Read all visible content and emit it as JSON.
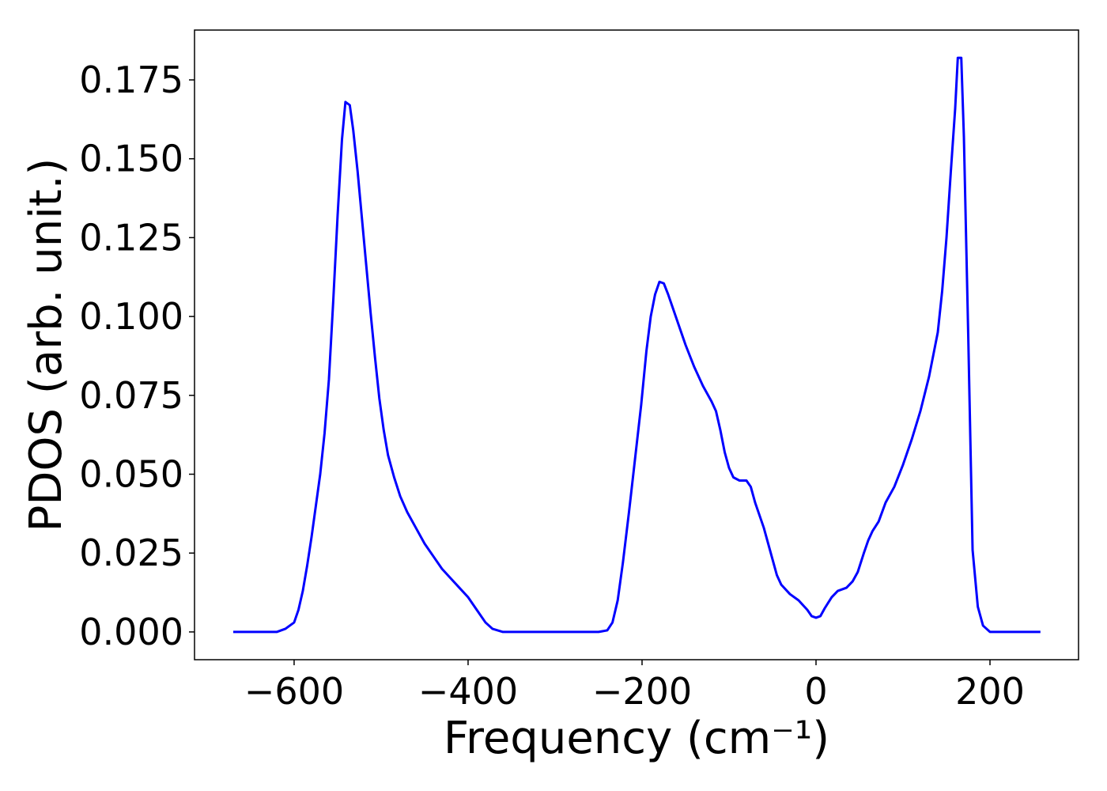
{
  "chart_data": {
    "type": "line",
    "xlabel": "Frequency (cm⁻¹)",
    "ylabel": "PDOS (arb. unit.)",
    "xlim": [
      -714.5,
      301.8
    ],
    "ylim": [
      -0.0088,
      0.1908
    ],
    "xticks": [
      {
        "value": -600,
        "label": "−600"
      },
      {
        "value": -400,
        "label": "−400"
      },
      {
        "value": -200,
        "label": "−200"
      },
      0,
      200
    ],
    "yticks": [
      {
        "value": 0,
        "label": "0.000"
      },
      {
        "value": 0.025,
        "label": "0.025"
      },
      {
        "value": 0.05,
        "label": "0.050"
      },
      {
        "value": 0.075,
        "label": "0.075"
      },
      {
        "value": 0.1,
        "label": "0.100"
      },
      {
        "value": 0.125,
        "label": "0.125"
      },
      {
        "value": 0.15,
        "label": "0.150"
      },
      {
        "value": 0.175,
        "label": "0.175"
      }
    ],
    "x": [
      -670,
      -620,
      -610,
      -600,
      -595,
      -590,
      -585,
      -580,
      -575,
      -570,
      -565,
      -560,
      -555,
      -550,
      -545,
      -541,
      -536,
      -532,
      -527,
      -522,
      -517,
      -512,
      -507,
      -502,
      -497,
      -492,
      -485,
      -478,
      -470,
      -460,
      -450,
      -440,
      -430,
      -420,
      -410,
      -400,
      -390,
      -380,
      -372,
      -360,
      -250,
      -240,
      -234,
      -228,
      -222,
      -215,
      -208,
      -201,
      -195,
      -190,
      -185,
      -180,
      -175,
      -170,
      -160,
      -150,
      -140,
      -130,
      -120,
      -115,
      -110,
      -105,
      -100,
      -95,
      -88,
      -80,
      -75,
      -70,
      -60,
      -50,
      -45,
      -40,
      -30,
      -20,
      -10,
      -5,
      0,
      5,
      10,
      18,
      25,
      35,
      42,
      48,
      55,
      60,
      65,
      72,
      80,
      90,
      100,
      110,
      120,
      130,
      140,
      145,
      150,
      155,
      160,
      163,
      167,
      170,
      175,
      180,
      186,
      192,
      200,
      258
    ],
    "series": [
      {
        "color": "#0000ff",
        "values": [
          0,
          0,
          0.001,
          0.003,
          0.007,
          0.013,
          0.021,
          0.03,
          0.04,
          0.05,
          0.063,
          0.08,
          0.105,
          0.132,
          0.156,
          0.168,
          0.167,
          0.159,
          0.146,
          0.131,
          0.116,
          0.101,
          0.087,
          0.074,
          0.064,
          0.056,
          0.049,
          0.043,
          0.038,
          0.033,
          0.028,
          0.024,
          0.02,
          0.017,
          0.014,
          0.011,
          0.007,
          0.003,
          0.001,
          0,
          0,
          0.0005,
          0.003,
          0.01,
          0.022,
          0.038,
          0.055,
          0.072,
          0.089,
          0.1,
          0.107,
          0.111,
          0.1105,
          0.107,
          0.099,
          0.091,
          0.084,
          0.078,
          0.073,
          0.07,
          0.064,
          0.057,
          0.052,
          0.049,
          0.048,
          0.048,
          0.046,
          0.041,
          0.033,
          0.023,
          0.018,
          0.015,
          0.012,
          0.01,
          0.007,
          0.005,
          0.0045,
          0.005,
          0.0075,
          0.011,
          0.013,
          0.014,
          0.016,
          0.019,
          0.025,
          0.029,
          0.032,
          0.035,
          0.041,
          0.046,
          0.053,
          0.061,
          0.07,
          0.081,
          0.095,
          0.108,
          0.125,
          0.146,
          0.166,
          0.182,
          0.182,
          0.157,
          0.094,
          0.026,
          0.008,
          0.002,
          0,
          0
        ]
      }
    ]
  }
}
